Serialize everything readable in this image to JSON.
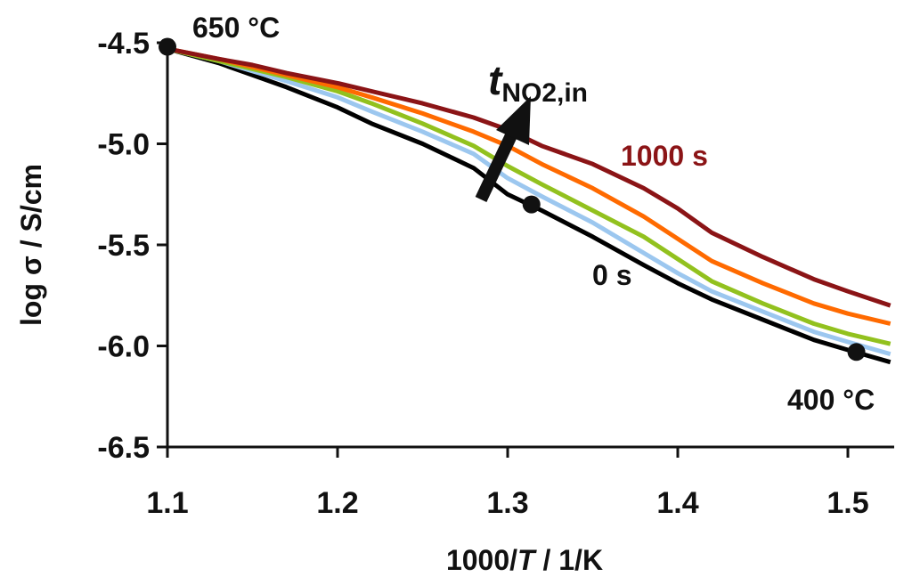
{
  "chart_data": {
    "type": "line",
    "title": "",
    "xlabel_parts": [
      "1000/",
      "T",
      " / 1/K"
    ],
    "ylabel": "log σ / S/cm",
    "xlim": [
      1.1,
      1.525
    ],
    "ylim": [
      -6.5,
      -4.5
    ],
    "xticks": [
      1.1,
      1.2,
      1.3,
      1.4,
      1.5
    ],
    "yticks": [
      -4.5,
      -5.0,
      -5.5,
      -6.0,
      -6.5
    ],
    "xtick_labels": [
      "1.1",
      "1.2",
      "1.3",
      "1.4",
      "1.5"
    ],
    "ytick_labels": [
      "-4.5",
      "-5.0",
      "-5.5",
      "-6.0",
      "-6.5"
    ],
    "series": [
      {
        "name": "0 s",
        "color": "#000000",
        "x": [
          1.1,
          1.13,
          1.15,
          1.17,
          1.2,
          1.22,
          1.25,
          1.28,
          1.3,
          1.32,
          1.35,
          1.38,
          1.4,
          1.42,
          1.45,
          1.48,
          1.5,
          1.525
        ],
        "y": [
          -4.53,
          -4.6,
          -4.66,
          -4.72,
          -4.82,
          -4.9,
          -5.0,
          -5.12,
          -5.25,
          -5.33,
          -5.46,
          -5.6,
          -5.69,
          -5.77,
          -5.87,
          -5.97,
          -6.02,
          -6.08
        ]
      },
      {
        "name": "light blue",
        "color": "#9cc7ef",
        "x": [
          1.1,
          1.13,
          1.15,
          1.17,
          1.2,
          1.22,
          1.25,
          1.28,
          1.3,
          1.32,
          1.35,
          1.38,
          1.4,
          1.42,
          1.45,
          1.48,
          1.5,
          1.525
        ],
        "y": [
          -4.53,
          -4.59,
          -4.64,
          -4.69,
          -4.77,
          -4.84,
          -4.94,
          -5.05,
          -5.17,
          -5.26,
          -5.39,
          -5.54,
          -5.64,
          -5.73,
          -5.83,
          -5.93,
          -5.98,
          -6.04
        ]
      },
      {
        "name": "green",
        "color": "#92c11e",
        "x": [
          1.1,
          1.13,
          1.15,
          1.17,
          1.2,
          1.22,
          1.25,
          1.28,
          1.3,
          1.32,
          1.35,
          1.38,
          1.4,
          1.42,
          1.45,
          1.48,
          1.5,
          1.525
        ],
        "y": [
          -4.53,
          -4.59,
          -4.63,
          -4.67,
          -4.74,
          -4.8,
          -4.9,
          -5.01,
          -5.11,
          -5.2,
          -5.33,
          -5.46,
          -5.57,
          -5.68,
          -5.79,
          -5.89,
          -5.94,
          -5.99
        ]
      },
      {
        "name": "orange",
        "color": "#ff6a00",
        "x": [
          1.1,
          1.13,
          1.15,
          1.17,
          1.2,
          1.22,
          1.25,
          1.28,
          1.3,
          1.32,
          1.35,
          1.38,
          1.4,
          1.42,
          1.45,
          1.48,
          1.5,
          1.525
        ],
        "y": [
          -4.53,
          -4.58,
          -4.62,
          -4.66,
          -4.72,
          -4.77,
          -4.85,
          -4.94,
          -5.01,
          -5.1,
          -5.22,
          -5.36,
          -5.47,
          -5.58,
          -5.69,
          -5.79,
          -5.84,
          -5.89
        ]
      },
      {
        "name": "1000 s",
        "color": "#8b1416",
        "x": [
          1.1,
          1.13,
          1.15,
          1.17,
          1.2,
          1.22,
          1.25,
          1.28,
          1.3,
          1.32,
          1.35,
          1.38,
          1.4,
          1.42,
          1.45,
          1.48,
          1.5,
          1.525
        ],
        "y": [
          -4.53,
          -4.58,
          -4.61,
          -4.65,
          -4.7,
          -4.74,
          -4.8,
          -4.87,
          -4.93,
          -5.01,
          -5.1,
          -5.22,
          -5.32,
          -5.44,
          -5.56,
          -5.67,
          -5.73,
          -5.8
        ]
      }
    ],
    "markers": [
      {
        "x": 1.1,
        "y": -4.52,
        "label": "650 °C"
      },
      {
        "x": 1.314,
        "y": -5.3,
        "label": ""
      },
      {
        "x": 1.505,
        "y": -6.03,
        "label": "400 °C"
      }
    ],
    "annotations": {
      "label_0s": "0 s",
      "label_1000s": "1000 s",
      "arrow_label_main": "t",
      "arrow_label_sub": "NO2,in"
    }
  }
}
